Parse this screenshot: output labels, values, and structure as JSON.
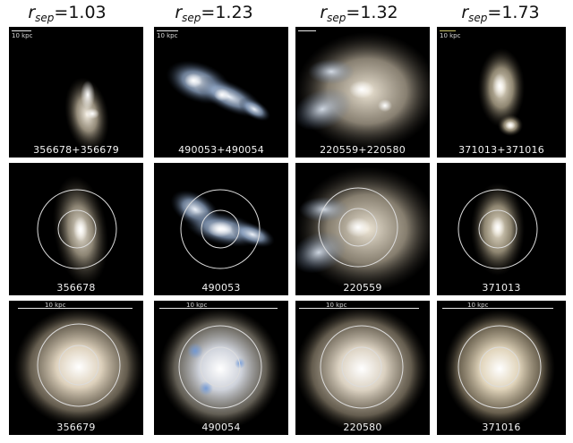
{
  "columns": [
    {
      "prefix": "r",
      "subscript": "sep",
      "value": "=1.03"
    },
    {
      "prefix": "r",
      "subscript": "sep",
      "value": "=1.23"
    },
    {
      "prefix": "r",
      "subscript": "sep",
      "value": "=1.32"
    },
    {
      "prefix": "r",
      "subscript": "sep",
      "value": "=1.73"
    }
  ],
  "scale_label": "10 kpc",
  "rows": [
    {
      "labels": [
        "356678+356679",
        "490053+490054",
        "220559+220580",
        "371013+371016"
      ]
    },
    {
      "labels": [
        "356678",
        "490053",
        "220559",
        "371013"
      ]
    },
    {
      "labels": [
        "356679",
        "490054",
        "220580",
        "371016"
      ]
    }
  ],
  "colors": {
    "panel_background": "#000000",
    "circle_stroke": "#dcdcdc",
    "galaxy_warm": "#f3e7d3",
    "galaxy_blue": "#b9cfe8"
  }
}
